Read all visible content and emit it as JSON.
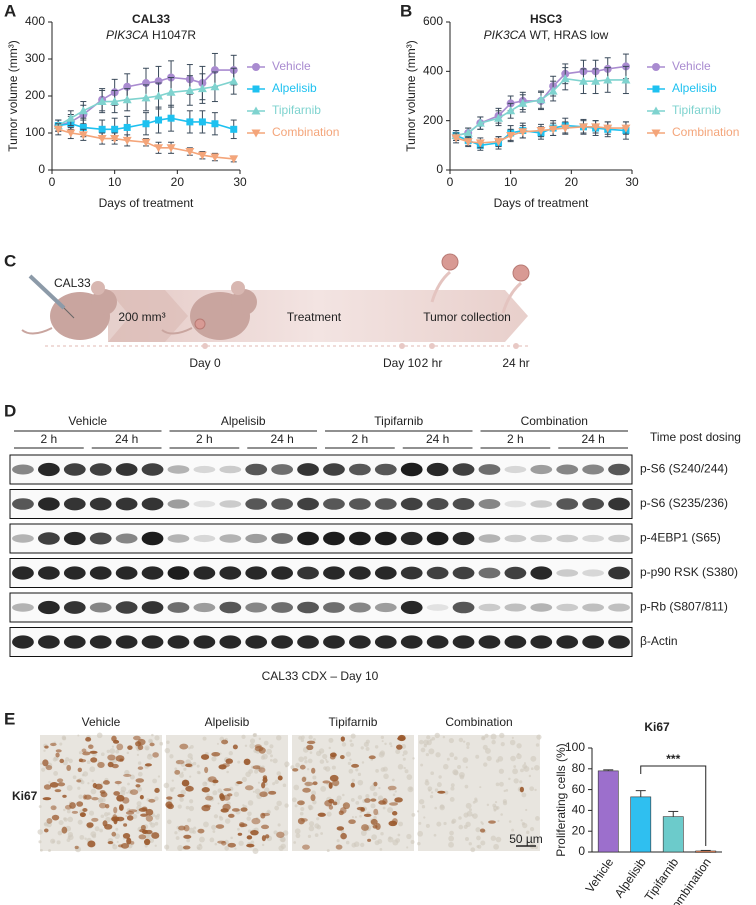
{
  "panel_labels": [
    "A",
    "B",
    "C",
    "D",
    "E"
  ],
  "chart_data": [
    {
      "type": "line",
      "title": "CAL33",
      "subtitle": [
        "PIK3CA",
        "H1047R"
      ],
      "x_label": "Days of treatment",
      "y_label": "Tumor volume (mm³)",
      "x": [
        1,
        3,
        5,
        8,
        10,
        12,
        15,
        17,
        19,
        22,
        24,
        26,
        29
      ],
      "xlim": [
        0,
        30
      ],
      "xticks": [
        0,
        10,
        20,
        30
      ],
      "ylim": [
        0,
        400
      ],
      "yticks": [
        0,
        100,
        200,
        300,
        400
      ],
      "legend": "right",
      "series": [
        {
          "name": "Vehicle",
          "color": "#a98bd0",
          "marker": "circle",
          "values": [
            120,
            130,
            150,
            190,
            210,
            225,
            235,
            240,
            250,
            245,
            235,
            270,
            270
          ],
          "errors": [
            15,
            20,
            25,
            30,
            35,
            35,
            40,
            40,
            45,
            40,
            45,
            45,
            40
          ]
        },
        {
          "name": "Alpelisib",
          "color": "#1ec1f0",
          "marker": "square",
          "values": [
            120,
            125,
            115,
            110,
            110,
            115,
            125,
            135,
            140,
            130,
            130,
            125,
            110
          ],
          "errors": [
            15,
            20,
            25,
            25,
            30,
            30,
            30,
            35,
            35,
            30,
            30,
            30,
            25
          ]
        },
        {
          "name": "Tipifarnib",
          "color": "#7fd3cf",
          "marker": "triangle-up",
          "values": [
            120,
            140,
            160,
            185,
            185,
            190,
            195,
            200,
            210,
            215,
            220,
            225,
            240
          ],
          "errors": [
            15,
            20,
            25,
            30,
            30,
            30,
            35,
            35,
            40,
            40,
            40,
            40,
            35
          ]
        },
        {
          "name": "Combination",
          "color": "#f4a57a",
          "marker": "triangle-down",
          "values": [
            110,
            100,
            95,
            85,
            85,
            80,
            75,
            60,
            60,
            50,
            40,
            35,
            30
          ],
          "errors": [
            15,
            15,
            15,
            15,
            15,
            15,
            10,
            15,
            15,
            10,
            10,
            10,
            8
          ]
        }
      ]
    },
    {
      "type": "line",
      "title": "HSC3",
      "subtitle": [
        "PIK3CA",
        "WT, HRAS low"
      ],
      "x_label": "Days of treatment",
      "y_label": "Tumor volume (mm³)",
      "x": [
        1,
        3,
        5,
        8,
        10,
        12,
        15,
        17,
        19,
        22,
        24,
        26,
        29
      ],
      "xlim": [
        0,
        30
      ],
      "xticks": [
        0,
        10,
        20,
        30
      ],
      "ylim": [
        0,
        600
      ],
      "yticks": [
        0,
        200,
        400,
        600
      ],
      "legend": "right",
      "series": [
        {
          "name": "Vehicle",
          "color": "#a98bd0",
          "marker": "circle",
          "values": [
            140,
            150,
            190,
            220,
            270,
            280,
            280,
            340,
            390,
            400,
            400,
            410,
            420
          ],
          "errors": [
            20,
            20,
            25,
            30,
            30,
            35,
            35,
            40,
            40,
            45,
            45,
            45,
            50
          ]
        },
        {
          "name": "Alpelisib",
          "color": "#1ec1f0",
          "marker": "square",
          "values": [
            140,
            120,
            100,
            110,
            150,
            160,
            150,
            170,
            180,
            175,
            170,
            165,
            160
          ],
          "errors": [
            20,
            20,
            20,
            25,
            30,
            30,
            25,
            30,
            30,
            30,
            30,
            30,
            35
          ]
        },
        {
          "name": "Tipifarnib",
          "color": "#7fd3cf",
          "marker": "triangle-up",
          "values": [
            140,
            150,
            190,
            210,
            240,
            270,
            285,
            320,
            370,
            360,
            360,
            365,
            365
          ],
          "errors": [
            20,
            20,
            25,
            30,
            30,
            35,
            35,
            40,
            45,
            50,
            50,
            50,
            55
          ]
        },
        {
          "name": "Combination",
          "color": "#f4a57a",
          "marker": "triangle-down",
          "values": [
            130,
            115,
            110,
            115,
            140,
            155,
            160,
            165,
            170,
            175,
            175,
            170,
            170
          ],
          "errors": [
            20,
            20,
            20,
            20,
            25,
            25,
            25,
            25,
            25,
            25,
            25,
            25,
            25
          ]
        }
      ]
    },
    {
      "type": "bar",
      "title": "Ki67",
      "y_label": "Proliferating cells (%)",
      "categories": [
        "Vehicle",
        "Alpelisib",
        "Tipifarnib",
        "Combination"
      ],
      "values": [
        78,
        53,
        34,
        1
      ],
      "errors": [
        1,
        6,
        5,
        0.5
      ],
      "colors": [
        "#9c6fcc",
        "#2fbff0",
        "#6ccbcb",
        "#f28a5a"
      ],
      "ylim": [
        0,
        100
      ],
      "yticks": [
        0,
        20,
        40,
        60,
        80,
        100
      ],
      "annotation": "***"
    }
  ],
  "diagram": {
    "cell_line": "CAL33",
    "volume": "200 mm³",
    "phases": [
      "Treatment",
      "Tumor collection"
    ],
    "timeline": [
      "Day 0",
      "Day 10",
      "2 hr",
      "24 hr"
    ]
  },
  "blot": {
    "groups": [
      "Vehicle",
      "Alpelisib",
      "Tipifarnib",
      "Combination"
    ],
    "timepoints": [
      "2 h",
      "24 h"
    ],
    "time_label": "Time post dosing",
    "rows": [
      "p-S6 (S240/244)",
      "p-S6 (S235/236)",
      "p-4EBP1 (S65)",
      "p-p90 RSK (S380)",
      "p-Rb (S807/811)",
      "β-Actin"
    ],
    "caption": "CAL33 CDX – Day 10"
  },
  "ihc": {
    "stain": "Ki67",
    "groups": [
      "Vehicle",
      "Alpelisib",
      "Tipifarnib",
      "Combination"
    ],
    "scale_bar": "50 µm"
  }
}
